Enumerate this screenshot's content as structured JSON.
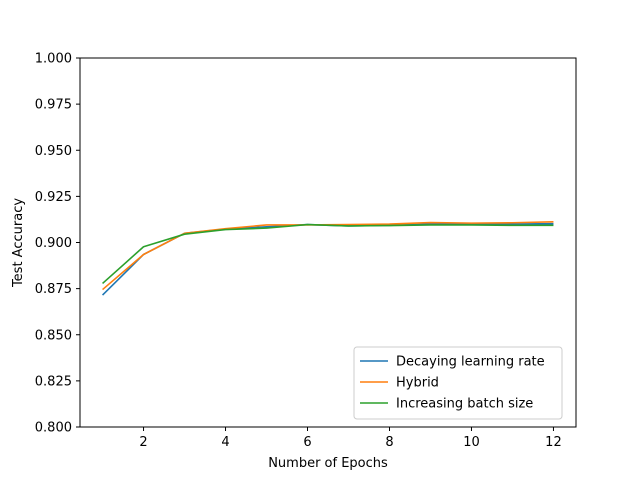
{
  "chart_data": {
    "type": "line",
    "title": "",
    "xlabel": "Number of Epochs",
    "ylabel": "Test Accuracy",
    "xlim": [
      0.45,
      12.55
    ],
    "ylim": [
      0.8,
      1.0
    ],
    "x_ticks": [
      2,
      4,
      6,
      8,
      10,
      12
    ],
    "x_tick_labels": [
      "2",
      "4",
      "6",
      "8",
      "10",
      "12"
    ],
    "y_ticks": [
      0.8,
      0.825,
      0.85,
      0.875,
      0.9,
      0.925,
      0.95,
      0.975,
      1.0
    ],
    "y_tick_labels": [
      "0.800",
      "0.825",
      "0.850",
      "0.875",
      "0.900",
      "0.925",
      "0.950",
      "0.975",
      "1.000"
    ],
    "grid": false,
    "legend_position": "lower-right",
    "x": [
      1,
      2,
      3,
      4,
      5,
      6,
      7,
      8,
      9,
      10,
      11,
      12
    ],
    "series": [
      {
        "name": "Decaying learning rate",
        "color": "#1f77b4",
        "values": [
          0.8715,
          0.8935,
          0.905,
          0.9073,
          0.9085,
          0.9097,
          0.909,
          0.9093,
          0.91,
          0.91,
          0.91,
          0.9102
        ]
      },
      {
        "name": "Hybrid",
        "color": "#ff7f0e",
        "values": [
          0.8745,
          0.8935,
          0.905,
          0.9075,
          0.9095,
          0.9095,
          0.9097,
          0.91,
          0.9108,
          0.9105,
          0.9107,
          0.9112
        ]
      },
      {
        "name": "Increasing batch size",
        "color": "#2ca02c",
        "values": [
          0.8778,
          0.8977,
          0.9045,
          0.907,
          0.9078,
          0.9097,
          0.909,
          0.9092,
          0.9095,
          0.9095,
          0.9093,
          0.9093
        ]
      }
    ]
  }
}
